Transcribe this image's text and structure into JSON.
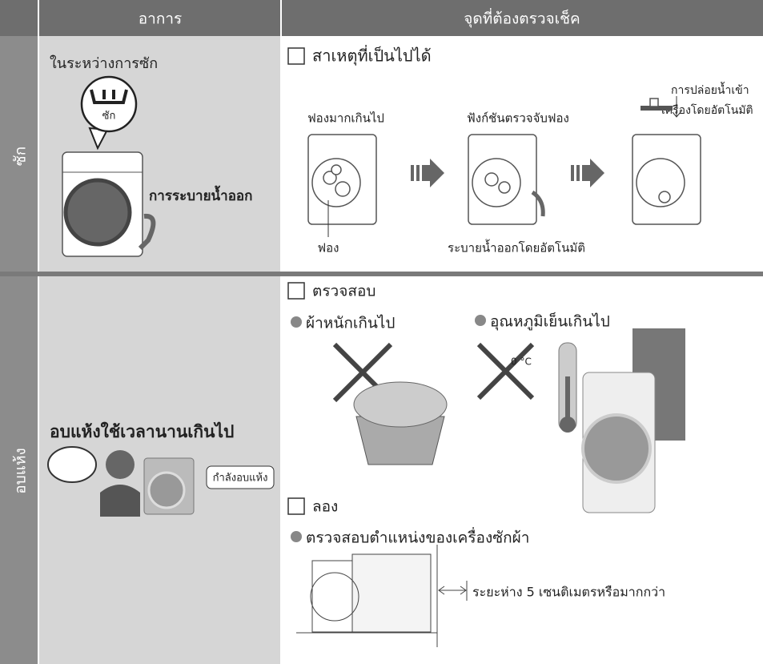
{
  "header": {
    "symptom": "อาการ",
    "check": "จุดที่ต้องตรวจเช็ค"
  },
  "rows": [
    {
      "side": "ซัก",
      "symptom": "ในระหว่างการซัก",
      "icon_label": "ซัก",
      "symptom_note": "การระบายน้ำออก",
      "heading": "สาเหตุที่เป็นไปได้",
      "labels": [
        "ฟองมากเกินไป",
        "ฟังก์ชันตรวจจับฟอง",
        "การปล่อยน้ำเข้า",
        "เครื่องโดยอัตโนมัติ",
        "ฟอง",
        "ระบายน้ำออกโดยอัตโนมัติ"
      ]
    },
    {
      "side": "อบแห้ง",
      "symptom": "อบแห้งใช้เวลานานเกินไป",
      "bubble": "กำลังอบแห้ง",
      "heading": "ตรวจสอบ",
      "bullets": [
        "ผ้าหนักเกินไป",
        "อุณหภูมิเย็นเกินไป"
      ],
      "temperature": "0 °C",
      "heading2": "ลอง",
      "bullet2": "ตรวจสอบตำแหน่งของเครื่องซักผ้า",
      "distance": "ระยะห่าง 5 เซนติเมตรหรือมากกว่า"
    }
  ]
}
